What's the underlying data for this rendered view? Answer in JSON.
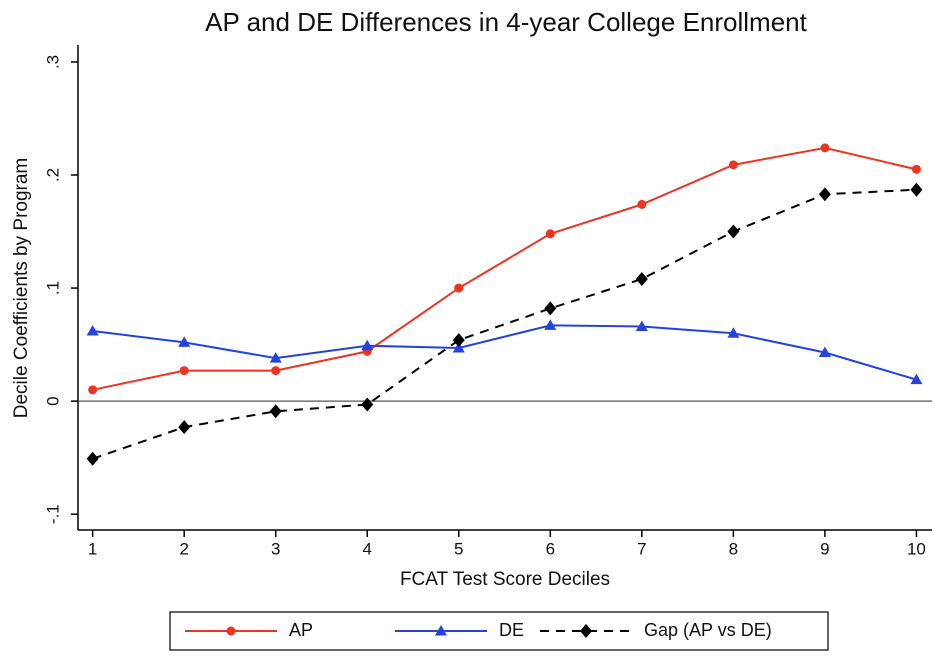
{
  "chart_data": {
    "type": "line",
    "title": "AP and DE Differences in 4-year College Enrollment",
    "x_label": "FCAT Test Score Deciles",
    "y_label": "Decile Coefficients by Program",
    "x": [
      1,
      2,
      3,
      4,
      5,
      6,
      7,
      8,
      9,
      10
    ],
    "xlim": [
      0.84,
      10.17
    ],
    "xticks": [
      1,
      2,
      3,
      4,
      5,
      6,
      7,
      8,
      9,
      10
    ],
    "ylim": [
      -0.114,
      0.315
    ],
    "yticks": [
      {
        "value": -0.1,
        "label": "-.1"
      },
      0,
      {
        "value": 0.1,
        "label": ".1"
      },
      {
        "value": 0.2,
        "label": ".2"
      },
      {
        "value": 0.3,
        "label": ".3"
      }
    ],
    "reference_line": 0,
    "legend": "bottom",
    "series": [
      {
        "name": "AP",
        "color": "#ee3322",
        "marker": "circle",
        "dash": false,
        "values": [
          0.01,
          0.027,
          0.027,
          0.044,
          0.1,
          0.148,
          0.174,
          0.209,
          0.224,
          0.205
        ]
      },
      {
        "name": "DE",
        "color": "#2244dd",
        "marker": "triangle",
        "dash": false,
        "values": [
          0.062,
          0.052,
          0.038,
          0.049,
          0.047,
          0.067,
          0.066,
          0.06,
          0.043,
          0.019
        ]
      },
      {
        "name": "Gap (AP vs DE)",
        "color": "#000000",
        "marker": "diamond",
        "dash": true,
        "values": [
          -0.051,
          -0.023,
          -0.009,
          -0.003,
          0.054,
          0.082,
          0.108,
          0.15,
          0.183,
          0.187
        ]
      }
    ]
  }
}
